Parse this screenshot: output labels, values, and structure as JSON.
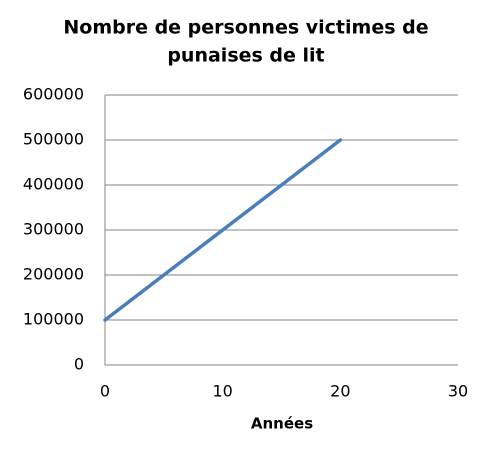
{
  "chart_data": {
    "type": "line",
    "title_lines": [
      "Nombre de personnes victimes de",
      "punaises de lit"
    ],
    "x_label": "Années",
    "x": [
      0,
      20
    ],
    "series": [
      {
        "name": null,
        "color": "#4a7ebb",
        "values": [
          100000,
          500000
        ]
      }
    ],
    "xlim": [
      0,
      30
    ],
    "xticks": [
      0,
      10,
      20,
      30
    ],
    "ylim": [
      0,
      600000
    ],
    "yticks": [
      0,
      100000,
      200000,
      300000,
      400000,
      500000,
      600000
    ],
    "grid": true
  }
}
